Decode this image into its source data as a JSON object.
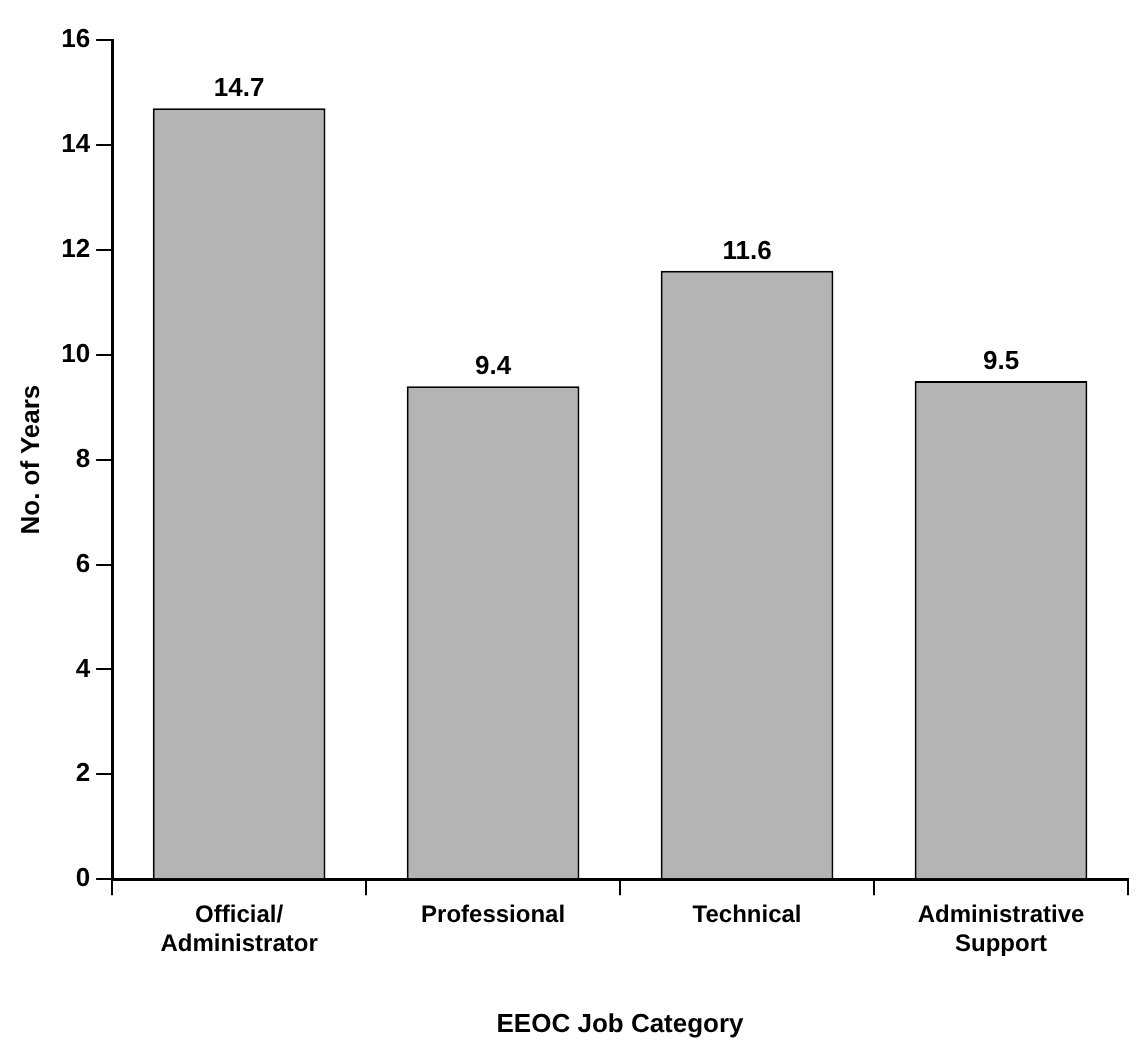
{
  "chart_data": {
    "type": "bar",
    "categories": [
      "Official/ Administrator",
      "Professional",
      "Technical",
      "Administrative Support"
    ],
    "values": [
      14.7,
      9.4,
      11.6,
      9.5
    ],
    "color": "#b4b4b4",
    "ylim": [
      0,
      16
    ],
    "yticks": [
      0,
      2,
      4,
      6,
      8,
      10,
      12,
      14,
      16
    ],
    "grid": false,
    "data_labels": true,
    "xlabel": "EEOC Job Category",
    "ylabel": "No. of Years"
  }
}
